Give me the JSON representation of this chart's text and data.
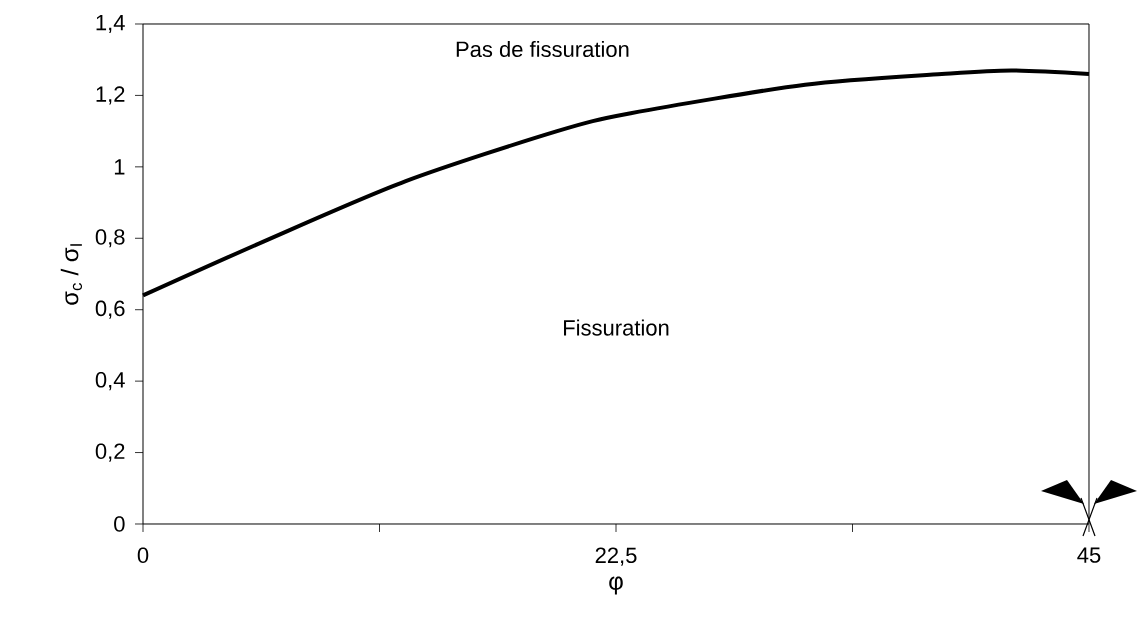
{
  "chart_data": {
    "type": "line",
    "xlabel": "φ",
    "ylabel": "σ$_{c}$ / σ$_{I}$",
    "x": [
      0,
      5.7,
      12.5,
      19.7,
      23.2,
      31.5,
      38,
      41.3,
      45
    ],
    "series": [
      {
        "color": "#000000",
        "values": [
          0.64,
          0.79,
          0.96,
          1.1,
          1.15,
          1.23,
          1.26,
          1.27,
          1.26
        ]
      }
    ],
    "xlim": [
      0,
      45
    ],
    "ylim": [
      0,
      1.4
    ],
    "xticks": [
      0,
      {
        "value": 11.25,
        "label": null
      },
      {
        "value": 22.5,
        "label": "22,5"
      },
      {
        "value": 33.75,
        "label": null
      },
      45
    ],
    "yticks": [
      0,
      {
        "value": 0.2,
        "label": "0,2"
      },
      {
        "value": 0.4,
        "label": "0,4"
      },
      {
        "value": 0.6,
        "label": "0,6"
      },
      {
        "value": 0.8,
        "label": "0,8"
      },
      1,
      {
        "value": 1.2,
        "label": "1,2"
      },
      {
        "value": 1.4,
        "label": "1,4"
      }
    ],
    "annotations": [
      "Pas de fissuration",
      "Fissuration"
    ],
    "grid": false,
    "marker": "none",
    "line_style": "solid"
  }
}
